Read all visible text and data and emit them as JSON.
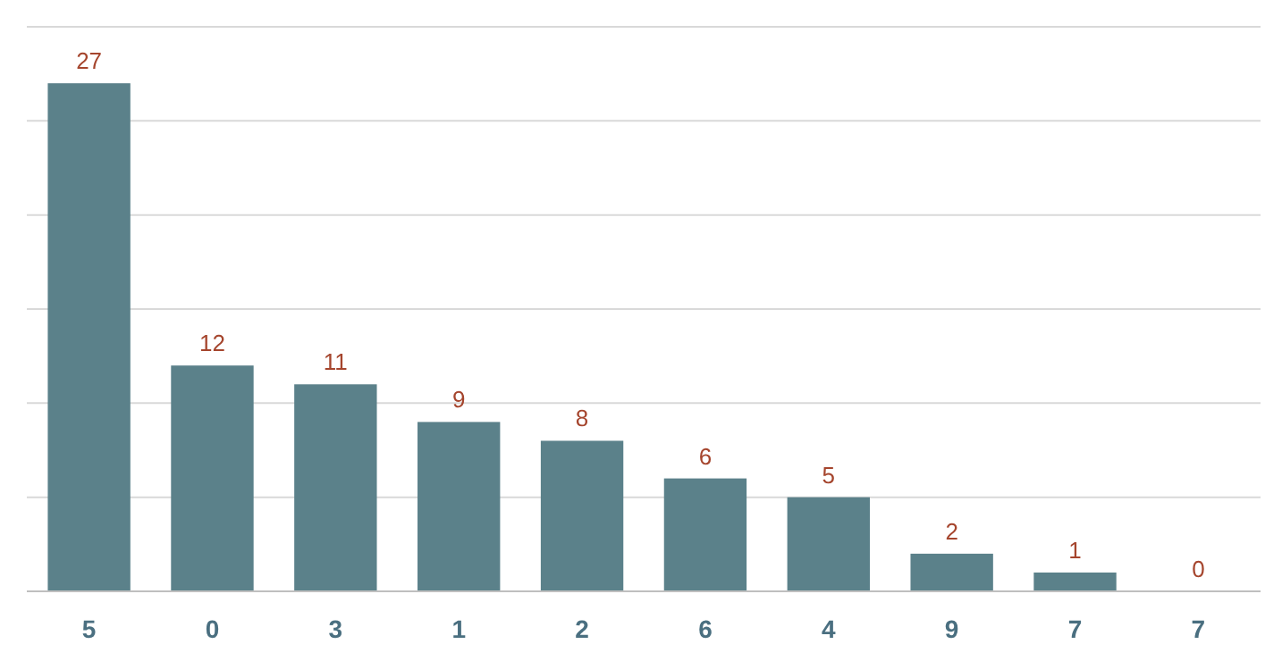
{
  "chart_data": {
    "type": "bar",
    "categories": [
      "5",
      "0",
      "3",
      "1",
      "2",
      "6",
      "4",
      "9",
      "7",
      "7"
    ],
    "values": [
      27,
      12,
      11,
      9,
      8,
      6,
      5,
      2,
      1,
      0
    ],
    "color": "#5b818a",
    "ylim": [
      0,
      30
    ],
    "yticks": [
      {
        "value": 0,
        "label": null
      },
      {
        "value": 5,
        "label": null
      },
      {
        "value": 10,
        "label": null
      },
      {
        "value": 15,
        "label": null
      },
      {
        "value": 20,
        "label": null
      },
      {
        "value": 25,
        "label": null
      },
      {
        "value": 30,
        "label": null
      }
    ],
    "grid": "y",
    "tick_labels": "x",
    "data_labels": true
  }
}
